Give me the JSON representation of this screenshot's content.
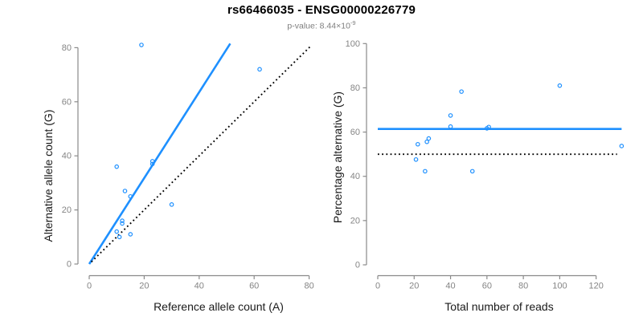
{
  "header": {
    "title": "rs66466035 - ENSG00000226779",
    "pvalue_label": "p-value: ",
    "pvalue_mantissa": "8.44×10",
    "pvalue_exponent": "-9"
  },
  "colors": {
    "accent_blue": "#1E90FF",
    "axis_gray": "#8a8a8a",
    "tick_text_gray": "#858585",
    "axis_label_text": "#1a1a1a",
    "subtitle_gray": "#7e7e7e",
    "dotted_black": "#000000",
    "background": "#ffffff"
  },
  "chart_data": [
    {
      "type": "scatter",
      "panel": "left",
      "xlabel": "Reference allele count (A)",
      "ylabel": "Alternative allele count (G)",
      "xlim": [
        0,
        84
      ],
      "ylim": [
        0,
        84
      ],
      "xticks": [
        0,
        20,
        40,
        60,
        80
      ],
      "yticks": [
        0,
        20,
        40,
        60,
        80
      ],
      "grid": false,
      "marker": "open-circle",
      "points": [
        [
          19,
          81
        ],
        [
          62,
          72
        ],
        [
          23,
          38
        ],
        [
          23,
          37
        ],
        [
          10,
          36
        ],
        [
          13,
          27
        ],
        [
          15,
          25
        ],
        [
          30,
          22
        ],
        [
          12,
          16
        ],
        [
          12,
          15
        ],
        [
          10,
          12
        ],
        [
          15,
          11
        ],
        [
          11,
          10
        ]
      ],
      "lines": [
        {
          "name": "fit-line",
          "color": "blue",
          "style": "solid",
          "x1": 0,
          "y1": 0,
          "x2": 51.3,
          "y2": 81.5
        },
        {
          "name": "identity-line",
          "color": "black",
          "style": "dotted",
          "x1": 0.8,
          "y1": 0.8,
          "x2": 80.4,
          "y2": 80.4
        }
      ]
    },
    {
      "type": "scatter",
      "panel": "right",
      "xlabel": "Total number of reads",
      "ylabel": "Percentage alternative (G)",
      "xlim": [
        0,
        140
      ],
      "ylim": [
        0,
        100
      ],
      "xticks": [
        0,
        20,
        40,
        60,
        80,
        100,
        120
      ],
      "yticks": [
        0,
        20,
        40,
        60,
        80,
        100
      ],
      "grid": false,
      "marker": "open-circle",
      "points": [
        [
          100,
          81
        ],
        [
          46,
          78.3
        ],
        [
          40,
          67.5
        ],
        [
          40,
          62.5
        ],
        [
          61,
          62.3
        ],
        [
          60,
          61.7
        ],
        [
          28,
          57.1
        ],
        [
          27,
          55.6
        ],
        [
          22,
          54.5
        ],
        [
          134,
          53.7
        ],
        [
          21,
          47.6
        ],
        [
          26,
          42.3
        ],
        [
          52,
          42.3
        ]
      ],
      "lines": [
        {
          "name": "mean-line",
          "color": "blue",
          "style": "solid",
          "x1": 0,
          "y1": 61.4,
          "x2": 134,
          "y2": 61.4
        },
        {
          "name": "null-line",
          "color": "black",
          "style": "dotted",
          "x1": 0,
          "y1": 50,
          "x2": 131.5,
          "y2": 50
        }
      ]
    }
  ]
}
